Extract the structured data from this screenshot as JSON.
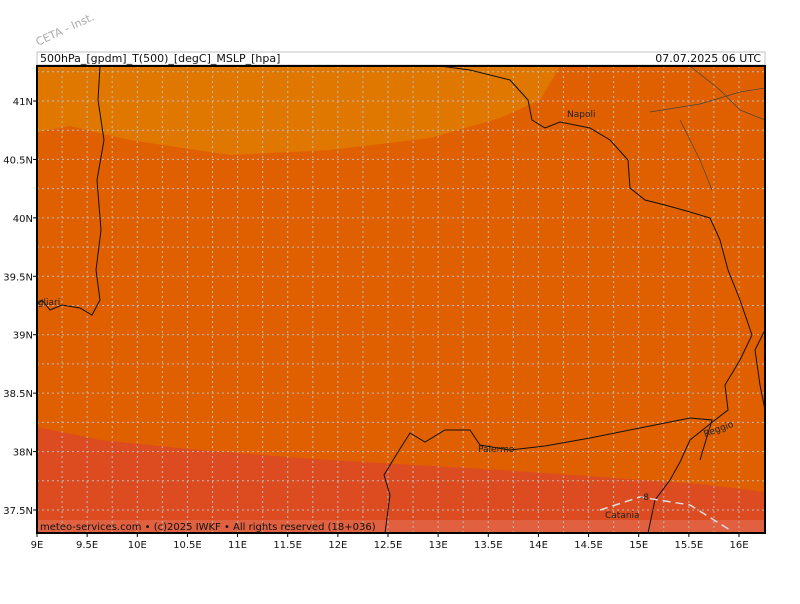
{
  "header": {
    "left": "500hPa_[gpdm]_T(500)_[degC]_MSLP_[hpa]",
    "right": "07.07.2025 06 UTC"
  },
  "watermark": "CETA - Inst.",
  "footer": "meteo-services.com • (c)2025 IWKF • All rights reserved (18+036)",
  "map": {
    "lon_ticks": [
      {
        "value": 9,
        "label": "9E"
      },
      {
        "value": 9.5,
        "label": "9.5E"
      },
      {
        "value": 10,
        "label": "10E"
      },
      {
        "value": 10.5,
        "label": "10.5E"
      },
      {
        "value": 11,
        "label": "11E"
      },
      {
        "value": 11.5,
        "label": "11.5E"
      },
      {
        "value": 12,
        "label": "12E"
      },
      {
        "value": 12.5,
        "label": "12.5E"
      },
      {
        "value": 13,
        "label": "13E"
      },
      {
        "value": 13.5,
        "label": "13.5E"
      },
      {
        "value": 14,
        "label": "14E"
      },
      {
        "value": 14.5,
        "label": "14.5E"
      },
      {
        "value": 15,
        "label": "15E"
      },
      {
        "value": 15.5,
        "label": "15.5E"
      },
      {
        "value": 16,
        "label": "16E"
      }
    ],
    "lat_ticks": [
      {
        "value": 37.5,
        "label": "37.5N"
      },
      {
        "value": 38,
        "label": "38N"
      },
      {
        "value": 38.5,
        "label": "38.5N"
      },
      {
        "value": 39,
        "label": "39N"
      },
      {
        "value": 39.5,
        "label": "39.5N"
      },
      {
        "value": 40,
        "label": "40N"
      },
      {
        "value": 40.5,
        "label": "40.5N"
      },
      {
        "value": 41,
        "label": "41N"
      }
    ],
    "cities": {
      "napoli": "Napoli",
      "cagliari": "Cagliari",
      "palermo": "Palermo",
      "reggio": "Reggio",
      "catania": "Catania"
    },
    "contour_label": "-8"
  }
}
